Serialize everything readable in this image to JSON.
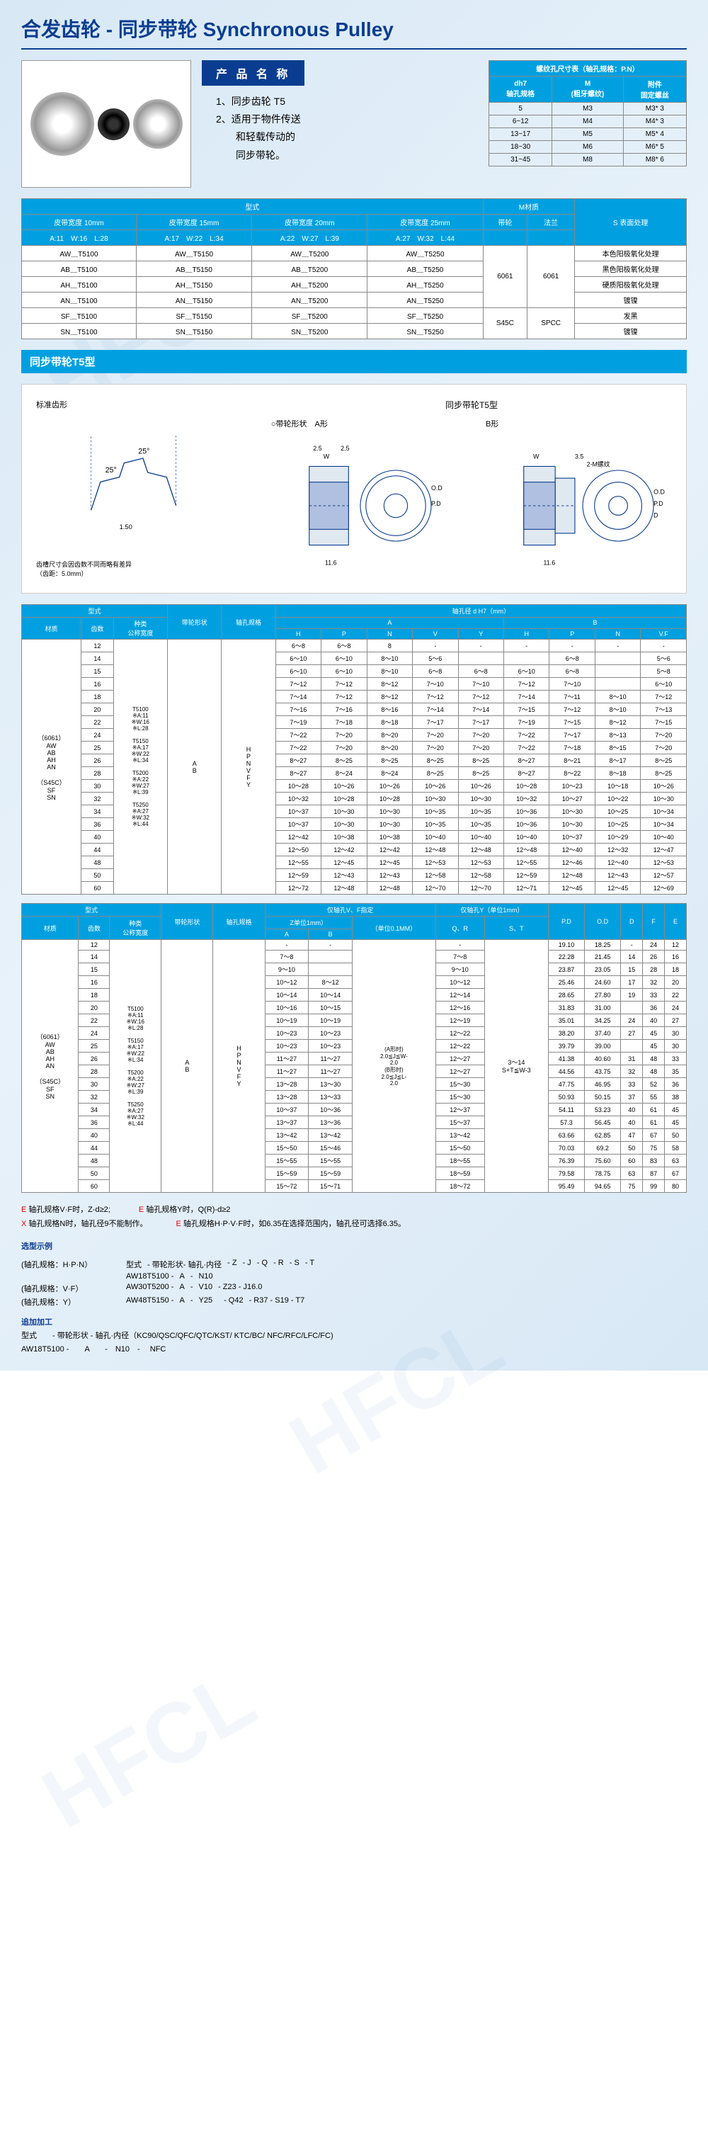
{
  "title": "合发齿轮 - 同步带轮 Synchronous Pulley",
  "nameBadge": "产 品 名 称",
  "desc": [
    "1、同步齿轮 T5",
    "2、适用于物件传送",
    "　　和轻载传动的",
    "　　同步带轮。"
  ],
  "screwTable": {
    "title": "螺纹孔尺寸表（轴孔规格：P.N）",
    "headers": [
      "dh7\n轴孔规格",
      "M\n(粗牙螺纹)",
      "附件\n固定螺丝"
    ],
    "rows": [
      [
        "5",
        "M3",
        "M3* 3"
      ],
      [
        "6~12",
        "M4",
        "M4* 3"
      ],
      [
        "13~17",
        "M5",
        "M5* 4"
      ],
      [
        "18~30",
        "M6",
        "M6* 5"
      ],
      [
        "31~45",
        "M8",
        "M8* 6"
      ]
    ]
  },
  "topTable": {
    "hdr1": [
      "型式",
      "M材质",
      ""
    ],
    "hdr2": [
      "皮带宽度 10mm",
      "皮带宽度 15mm",
      "皮带宽度 20mm",
      "皮带宽度 25mm",
      "带轮",
      "法兰",
      "S 表面处理"
    ],
    "hdr3": [
      "A:11　W:16　L:28",
      "A:17　W:22　L:34",
      "A:22　W:27　L:39",
      "A:27　W:32　L:44",
      "",
      "",
      ""
    ],
    "rows": [
      [
        "AW＿T5100",
        "AW＿T5150",
        "AW＿T5200",
        "AW＿T5250",
        "6061",
        "6061",
        "本色阳极氧化处理"
      ],
      [
        "AB＿T5100",
        "AB＿T5150",
        "AB＿T5200",
        "AB＿T5250",
        "",
        "",
        "黑色阳极氧化处理"
      ],
      [
        "AH＿T5100",
        "AH＿T5150",
        "AH＿T5200",
        "AH＿T5250",
        "",
        "",
        "硬质阳极氧化处理"
      ],
      [
        "AN＿T5100",
        "AN＿T5150",
        "AN＿T5200",
        "AN＿T5250",
        "",
        "",
        "镀镍"
      ],
      [
        "SF＿T5100",
        "SF＿T5150",
        "SF＿T5200",
        "SF＿T5250",
        "S45C",
        "SPCC",
        "发黑"
      ],
      [
        "SN＿T5100",
        "SN＿T5150",
        "SN＿T5200",
        "SN＿T5250",
        "",
        "",
        "镀镍"
      ]
    ]
  },
  "sectionTitle": "同步带轮T5型",
  "diagTitle": "同步带轮T5型",
  "diagLabels": {
    "std": "标准齿形",
    "note": "齿槽尺寸会因齿数不同而略有差异\n（齿距：5.0mm）",
    "shapeA": "○带轮形状　A形",
    "shapeB": "B形"
  },
  "bigTable1": {
    "h1": [
      "型式",
      "带轮形状",
      "轴孔规格",
      "轴孔径 d H7（mm）"
    ],
    "h2": [
      "材质",
      "齿数",
      "种类\n公称宽度",
      "",
      "",
      "A",
      "B"
    ],
    "h3": [
      "",
      "",
      "",
      "",
      "",
      "H",
      "P",
      "N",
      "V",
      "Y",
      "H",
      "P",
      "N",
      "V.F"
    ],
    "materials": "（6061）\nAW\nAB\nAH\nAN\n\n（S45C）\nSF\nSN",
    "types": "T5100\n※A:11\n※W:16\n※L:28\n\nT5150\n※A:17\n※W:22\n※L:34\n\nT5200\n※A:22\n※W:27\n※L:39\n\nT5250\n※A:27\n※W:32\n※L:44",
    "shapes": "A\nB",
    "boreShape": "H\nP\nN\nV\nF\nY",
    "rows": [
      [
        "12",
        "6～8",
        "6～8",
        "8",
        "-",
        "-",
        "-",
        "-",
        "-",
        "-"
      ],
      [
        "14",
        "6～10",
        "6～10",
        "8～10",
        "5～6",
        "",
        "",
        "6～8",
        "",
        "5～6"
      ],
      [
        "15",
        "6～10",
        "6～10",
        "8～10",
        "6～8",
        "6～8",
        "6～10",
        "6～8",
        "",
        "5～8"
      ],
      [
        "16",
        "7～12",
        "7～12",
        "8～12",
        "7～10",
        "7～10",
        "7～12",
        "7～10",
        "",
        "6～10"
      ],
      [
        "18",
        "7～14",
        "7～12",
        "8～12",
        "7～12",
        "7～12",
        "7～14",
        "7～11",
        "8～10",
        "7～12"
      ],
      [
        "20",
        "7～16",
        "7～16",
        "8～16",
        "7～14",
        "7～14",
        "7～15",
        "7～12",
        "8～10",
        "7～13"
      ],
      [
        "22",
        "7～19",
        "7～18",
        "8～18",
        "7～17",
        "7～17",
        "7～19",
        "7～15",
        "8～12",
        "7～15"
      ],
      [
        "24",
        "7～22",
        "7～20",
        "8～20",
        "7～20",
        "7～20",
        "7～22",
        "7～17",
        "8～13",
        "7～20"
      ],
      [
        "25",
        "7～22",
        "7～20",
        "8～20",
        "7～20",
        "7～20",
        "7～22",
        "7～18",
        "8～15",
        "7～20"
      ],
      [
        "26",
        "8～27",
        "8～25",
        "8～25",
        "8～25",
        "8～25",
        "8～27",
        "8～21",
        "8～17",
        "8～25"
      ],
      [
        "28",
        "8～27",
        "8～24",
        "8～24",
        "8～25",
        "8～25",
        "8～27",
        "8～22",
        "8～18",
        "8～25"
      ],
      [
        "30",
        "10～28",
        "10～26",
        "10～26",
        "10～26",
        "10～26",
        "10～28",
        "10～23",
        "10～18",
        "10～26"
      ],
      [
        "32",
        "10～32",
        "10～28",
        "10～28",
        "10～30",
        "10～30",
        "10～32",
        "10～27",
        "10～22",
        "10～30"
      ],
      [
        "34",
        "10～37",
        "10～30",
        "10～30",
        "10～35",
        "10～35",
        "10～36",
        "10～30",
        "10～25",
        "10～34"
      ],
      [
        "36",
        "10～37",
        "10～30",
        "10～30",
        "10～35",
        "10～35",
        "10～36",
        "10～30",
        "10～25",
        "10～34"
      ],
      [
        "40",
        "12～42",
        "10～38",
        "10～38",
        "10～40",
        "10～40",
        "10～40",
        "10～37",
        "10～29",
        "10～40"
      ],
      [
        "44",
        "12～50",
        "12～42",
        "12～42",
        "12～48",
        "12～48",
        "12～48",
        "12～40",
        "12～32",
        "12～47"
      ],
      [
        "48",
        "12～55",
        "12～45",
        "12～45",
        "12～53",
        "12～53",
        "12～55",
        "12～46",
        "12～40",
        "12～53"
      ],
      [
        "50",
        "12～59",
        "12～43",
        "12～43",
        "12～58",
        "12～58",
        "12～59",
        "12～48",
        "12～43",
        "12～57"
      ],
      [
        "60",
        "12～72",
        "12～48",
        "12～48",
        "12～70",
        "12～70",
        "12～71",
        "12～45",
        "12～45",
        "12～69"
      ]
    ]
  },
  "bigTable2": {
    "h1": [
      "型式",
      "带轮形状",
      "轴孔规格",
      "仅轴孔V、F指定",
      "仅轴孔Y（单位1mm）",
      "",
      "",
      "",
      ""
    ],
    "h2": [
      "材质",
      "齿数",
      "种类\n公称宽度",
      "",
      "",
      "Z单位1mm）",
      "（单位0.1MM）",
      "",
      "P.D",
      "O.D",
      "D",
      "F",
      "E"
    ],
    "h3": [
      "",
      "",
      "",
      "",
      "",
      "A",
      "B",
      "",
      "Q、R",
      "S、T",
      "",
      "",
      "",
      "",
      ""
    ],
    "materials": "（6061）\nAW\nAB\nAH\nAN\n\n（S45C）\nSF\nSN",
    "types": "T5100\n※A:11\n※W:16\n※L:28\n\nT5150\n※A:17\n※W:22\n※L:34\n\nT5200\n※A:22\n※W:27\n※L:39\n\nT5250\n※A:27\n※W:32\n※L:44",
    "shapes": "A\nB",
    "boreShape": "H\nP\nN\nV\nF\nY",
    "midA": "(A形时)\n2.0≦J≦W-\n2.0\n(B形时)\n2.0≦J≦L-\n2.0",
    "midB": "3～14\nS+T≦W-3",
    "rows": [
      [
        "12",
        "-",
        "-",
        "-",
        "19.10",
        "18.25",
        "-",
        "24",
        "12"
      ],
      [
        "14",
        "7～8",
        "",
        "7～8",
        "22.28",
        "21.45",
        "14",
        "26",
        "16"
      ],
      [
        "15",
        "9～10",
        "",
        "9～10",
        "23.87",
        "23.05",
        "15",
        "28",
        "18"
      ],
      [
        "16",
        "10～12",
        "8～12",
        "10～12",
        "25.46",
        "24.60",
        "17",
        "32",
        "20"
      ],
      [
        "18",
        "10～14",
        "10～14",
        "12～14",
        "28.65",
        "27.80",
        "19",
        "33",
        "22"
      ],
      [
        "20",
        "10～16",
        "10～15",
        "12～16",
        "31.83",
        "31.00",
        "",
        "36",
        "24"
      ],
      [
        "22",
        "10～19",
        "10～19",
        "12～19",
        "35.01",
        "34.25",
        "24",
        "40",
        "27"
      ],
      [
        "24",
        "10～23",
        "10～23",
        "12～22",
        "38.20",
        "37.40",
        "27",
        "45",
        "30"
      ],
      [
        "25",
        "10～23",
        "10～23",
        "12～22",
        "39.79",
        "39.00",
        "",
        "45",
        "30"
      ],
      [
        "26",
        "11～27",
        "11～27",
        "12～27",
        "41.38",
        "40.60",
        "31",
        "48",
        "33"
      ],
      [
        "28",
        "11～27",
        "11～27",
        "12～27",
        "44.56",
        "43.75",
        "32",
        "48",
        "35"
      ],
      [
        "30",
        "13～28",
        "13～30",
        "15～30",
        "47.75",
        "46.95",
        "33",
        "52",
        "36"
      ],
      [
        "32",
        "13～28",
        "13～33",
        "15～30",
        "50.93",
        "50.15",
        "37",
        "55",
        "38"
      ],
      [
        "34",
        "10～37",
        "10～36",
        "12～37",
        "54.11",
        "53.23",
        "40",
        "61",
        "45"
      ],
      [
        "36",
        "13～37",
        "13～36",
        "15～37",
        "57.3",
        "56.45",
        "40",
        "61",
        "45"
      ],
      [
        "40",
        "13～42",
        "13～42",
        "13～42",
        "63.66",
        "62.85",
        "47",
        "67",
        "50"
      ],
      [
        "44",
        "15～50",
        "15～46",
        "15～50",
        "70.03",
        "69.2",
        "50",
        "75",
        "58"
      ],
      [
        "48",
        "15～55",
        "15～55",
        "18～55",
        "76.39",
        "75.60",
        "60",
        "83",
        "63"
      ],
      [
        "50",
        "15～59",
        "15～59",
        "18～59",
        "79.58",
        "78.75",
        "63",
        "87",
        "67"
      ],
      [
        "60",
        "15～72",
        "15～71",
        "18～72",
        "95.49",
        "94.65",
        "75",
        "99",
        "80"
      ]
    ]
  },
  "notes": [
    {
      "c": "E",
      "cls": "red",
      "t": " 轴孔规格V·F时，Z-d≥2;"
    },
    {
      "c": "E",
      "cls": "red",
      "t": " 轴孔规格Y时，Q(R)-d≥2"
    },
    {
      "c": "X",
      "cls": "red",
      "t": " 轴孔规格N时，轴孔径9不能制作。"
    },
    {
      "c": "E",
      "cls": "red",
      "t": " 轴孔规格H·P·V·F时，如6.35在选择范围内，轴孔径可选择6.35。"
    }
  ],
  "exampleTitle": "选型示例",
  "examples": [
    {
      "label": "(轴孔规格：H·P·N）",
      "parts": [
        "型式",
        "- 带轮形状- 轴孔·内径",
        "- Z",
        "- J",
        "- Q",
        "- R",
        "- S",
        "- T"
      ]
    },
    {
      "label": "",
      "parts": [
        "AW18T5100 -",
        "A",
        "-",
        "N10",
        "",
        "",
        "",
        "",
        ""
      ]
    },
    {
      "label": "(轴孔规格：V·F）",
      "parts": [
        "AW30T5200 -",
        "A",
        "-",
        "V10",
        "- Z23 - J16.0",
        "",
        "",
        "",
        ""
      ]
    },
    {
      "label": "(轴孔规格：Y）",
      "parts": [
        "AW48T5150 -",
        "A",
        "-",
        "Y25",
        "",
        "- Q42",
        "- R37 - S19 - T7"
      ]
    }
  ],
  "addTitle": "追加加工",
  "addRows": [
    "型式　　- 带轮形状 - 轴孔·内径（KC90/QSC/QFC/QTC/KST/ KTC/BC/ NFC/RFC/LFC/FC)",
    "AW18T5100 -　　A　　-　N10　- 　NFC"
  ]
}
